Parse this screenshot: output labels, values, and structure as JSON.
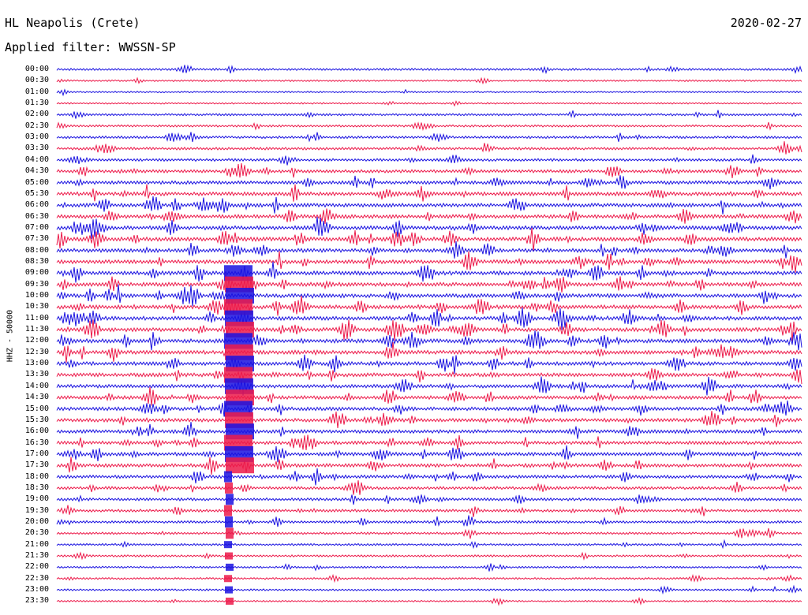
{
  "header": {
    "station": "HL Neapolis (Crete)",
    "date": "2020-02-27",
    "filter": "Applied filter: WWSSN-SP"
  },
  "chart_data": {
    "type": "line",
    "title": "HL Neapolis (Crete)",
    "subtitle": "Applied filter: WWSSN-SP",
    "date": "2020-02-27",
    "ylabel": "HHZ - 50000",
    "xlabel": "",
    "colors": [
      "#1a12e0",
      "#ec1a4a"
    ],
    "rows": [
      "00:00",
      "00:30",
      "01:00",
      "01:30",
      "02:00",
      "02:30",
      "03:00",
      "03:30",
      "04:00",
      "04:30",
      "05:00",
      "05:30",
      "06:00",
      "06:30",
      "07:00",
      "07:30",
      "08:00",
      "08:30",
      "09:00",
      "09:30",
      "10:00",
      "10:30",
      "11:00",
      "11:30",
      "12:00",
      "12:30",
      "13:00",
      "13:30",
      "14:00",
      "14:30",
      "15:00",
      "15:30",
      "16:00",
      "16:30",
      "17:00",
      "17:30",
      "18:00",
      "18:30",
      "19:00",
      "19:30",
      "20:00",
      "20:30",
      "21:00",
      "21:30",
      "22:00",
      "22:30",
      "23:00",
      "23:30"
    ],
    "activity": [
      0.35,
      0.15,
      0.1,
      0.1,
      0.35,
      0.3,
      0.45,
      0.5,
      0.5,
      0.7,
      0.8,
      0.9,
      0.9,
      0.95,
      1.0,
      1.0,
      0.95,
      0.95,
      1.0,
      1.0,
      1.0,
      1.0,
      1.0,
      1.0,
      1.0,
      0.95,
      0.9,
      0.9,
      0.85,
      0.85,
      0.85,
      0.85,
      0.8,
      0.8,
      0.85,
      0.8,
      0.7,
      0.6,
      0.55,
      0.55,
      0.45,
      0.35,
      0.3,
      0.3,
      0.25,
      0.25,
      0.2,
      0.15
    ]
  }
}
